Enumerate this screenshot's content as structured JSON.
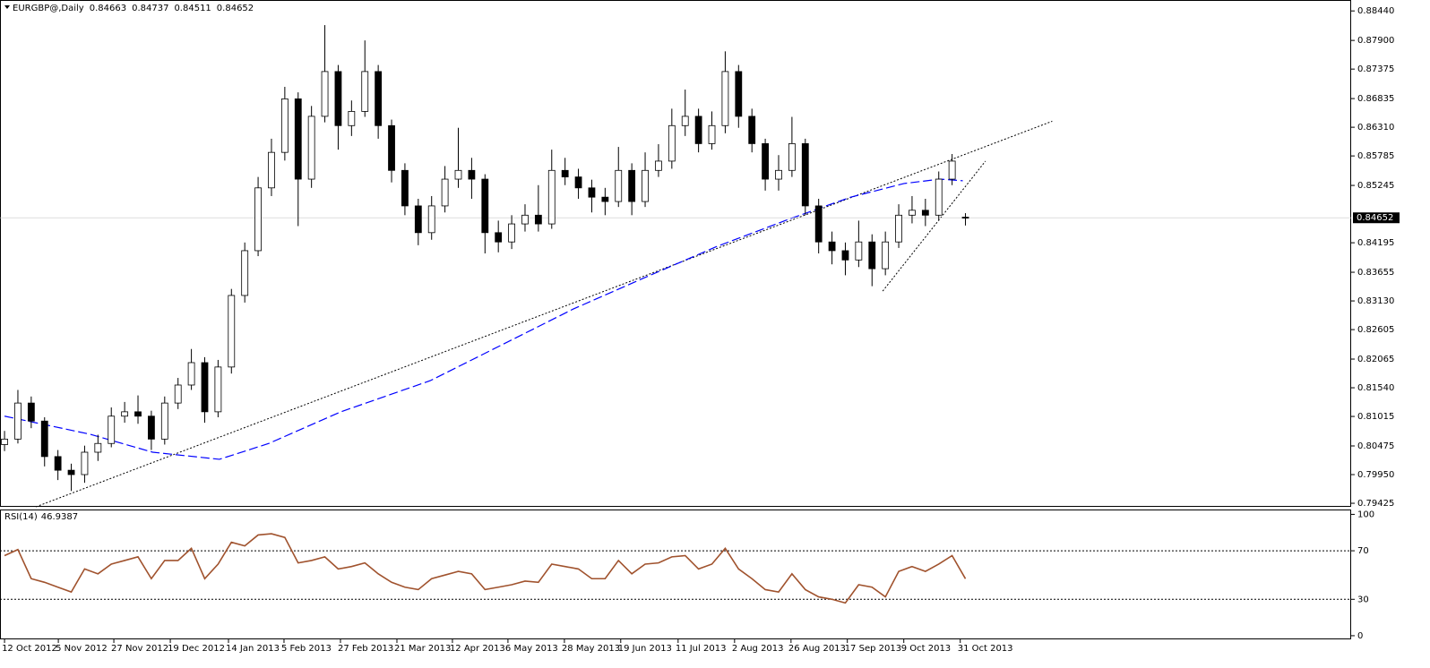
{
  "chart_data": [
    {
      "type": "candlestick",
      "title": "EURGBP@,Daily",
      "xlim": [
        -0.34,
        100.9
      ],
      "ylim": [
        0.7936,
        0.8864
      ],
      "yticks": [
        {
          "value": 0.8844,
          "label": "0.88440"
        },
        {
          "value": 0.879,
          "label": "0.87900"
        },
        0.87375,
        0.86835,
        {
          "value": 0.8631,
          "label": "0.86310"
        },
        0.85785,
        0.85245,
        0.84195,
        0.83655,
        {
          "value": 0.8313,
          "label": "0.83130"
        },
        0.82605,
        0.82065,
        {
          "value": 0.8154,
          "label": "0.81540"
        },
        0.81015,
        0.80475,
        {
          "value": 0.7995,
          "label": "0.79950"
        },
        0.79425
      ],
      "color_up": "#ffffff",
      "color_down": "#000000",
      "open": [
        0.805,
        0.806,
        0.8126,
        0.8093,
        0.8028,
        0.8003,
        0.7995,
        0.8036,
        0.8052,
        0.8102,
        0.811,
        0.8102,
        0.806,
        0.8126,
        0.8159,
        0.82,
        0.811,
        0.8192,
        0.8323,
        0.8405,
        0.852,
        0.8585,
        0.8683,
        0.8536,
        0.8651,
        0.8733,
        0.8634,
        0.866,
        0.8733,
        0.8634,
        0.8552,
        0.8487,
        0.8438,
        0.8487,
        0.8536,
        0.8552,
        0.8536,
        0.8438,
        0.8421,
        0.8454,
        0.847,
        0.8454,
        0.8552,
        0.854,
        0.852,
        0.8503,
        0.8495,
        0.8552,
        0.8495,
        0.8552,
        0.8569,
        0.8634,
        0.8651,
        0.8601,
        0.8634,
        0.8733,
        0.8651,
        0.8601,
        0.8536,
        0.8552,
        0.8601,
        0.8487,
        0.8421,
        0.8405,
        0.8388,
        0.8421,
        0.8372,
        0.8421,
        0.847,
        0.8479,
        0.847,
        0.8536,
        0.84663
      ],
      "high": [
        0.8075,
        0.815,
        0.8138,
        0.81,
        0.804,
        0.8015,
        0.8048,
        0.8068,
        0.8118,
        0.8128,
        0.814,
        0.8112,
        0.8138,
        0.8172,
        0.8225,
        0.821,
        0.8205,
        0.8335,
        0.842,
        0.854,
        0.861,
        0.8705,
        0.8695,
        0.867,
        0.8818,
        0.8745,
        0.868,
        0.879,
        0.8745,
        0.8645,
        0.8565,
        0.85,
        0.8505,
        0.856,
        0.863,
        0.8575,
        0.8545,
        0.846,
        0.847,
        0.849,
        0.8525,
        0.859,
        0.8575,
        0.8555,
        0.8535,
        0.852,
        0.8595,
        0.8565,
        0.8585,
        0.86,
        0.8665,
        0.87,
        0.8665,
        0.866,
        0.877,
        0.8745,
        0.8665,
        0.861,
        0.858,
        0.865,
        0.861,
        0.85,
        0.844,
        0.842,
        0.846,
        0.8435,
        0.844,
        0.849,
        0.8505,
        0.85,
        0.855,
        0.8582,
        0.84737
      ],
      "low": [
        0.8038,
        0.8052,
        0.808,
        0.801,
        0.7985,
        0.7965,
        0.798,
        0.802,
        0.8045,
        0.809,
        0.8088,
        0.804,
        0.805,
        0.8115,
        0.815,
        0.809,
        0.81,
        0.818,
        0.831,
        0.8395,
        0.8505,
        0.857,
        0.845,
        0.852,
        0.864,
        0.859,
        0.8615,
        0.865,
        0.861,
        0.853,
        0.847,
        0.8415,
        0.8425,
        0.8475,
        0.852,
        0.85,
        0.84,
        0.8402,
        0.8408,
        0.844,
        0.844,
        0.8445,
        0.8525,
        0.85,
        0.8475,
        0.847,
        0.8485,
        0.847,
        0.8485,
        0.854,
        0.8555,
        0.8615,
        0.8585,
        0.859,
        0.862,
        0.863,
        0.8585,
        0.8515,
        0.8515,
        0.854,
        0.847,
        0.84,
        0.838,
        0.836,
        0.8375,
        0.834,
        0.836,
        0.841,
        0.8455,
        0.845,
        0.846,
        0.8525,
        0.84511
      ],
      "close": [
        0.806,
        0.8126,
        0.8093,
        0.8028,
        0.8003,
        0.7995,
        0.8036,
        0.8052,
        0.8102,
        0.811,
        0.8102,
        0.806,
        0.8126,
        0.8159,
        0.82,
        0.811,
        0.8192,
        0.8323,
        0.8405,
        0.852,
        0.8585,
        0.8683,
        0.8536,
        0.8651,
        0.8733,
        0.8634,
        0.866,
        0.8733,
        0.8634,
        0.8552,
        0.8487,
        0.8438,
        0.8487,
        0.8536,
        0.8552,
        0.8536,
        0.8438,
        0.8421,
        0.8454,
        0.847,
        0.8454,
        0.8552,
        0.854,
        0.852,
        0.8503,
        0.8495,
        0.8552,
        0.8495,
        0.8552,
        0.8569,
        0.8634,
        0.8651,
        0.8601,
        0.8634,
        0.8733,
        0.8651,
        0.8601,
        0.8536,
        0.8552,
        0.8601,
        0.8487,
        0.8421,
        0.8405,
        0.8388,
        0.8421,
        0.8372,
        0.8421,
        0.847,
        0.8479,
        0.847,
        0.8536,
        0.8569,
        0.84652
      ],
      "moving_average": {
        "color": "#0000ff",
        "x": [
          0,
          6.4,
          11.1,
          16.1,
          19.8,
          25.2,
          31.9,
          37.3,
          42.6,
          48,
          53.4,
          58.7,
          63.4,
          67.4,
          70.1,
          71.8
        ],
        "values": [
          0.8102,
          0.8069,
          0.8036,
          0.8023,
          0.8052,
          0.811,
          0.8167,
          0.8233,
          0.8298,
          0.8356,
          0.8413,
          0.8462,
          0.8503,
          0.8528,
          0.8536,
          0.8533
        ]
      },
      "trendlines": [
        {
          "x": [
            2.35,
            78.5
          ],
          "values": [
            0.7936,
            0.8642
          ]
        },
        {
          "x": [
            65.8,
            73.5
          ],
          "values": [
            0.8331,
            0.8569
          ]
        }
      ]
    },
    {
      "type": "line",
      "title": "RSI(14)",
      "color": "#a0522d",
      "xlim": [
        -0.34,
        100.9
      ],
      "ylim": [
        -3,
        104
      ],
      "yticks": [
        0,
        30,
        70,
        100
      ],
      "levels": [
        30,
        70
      ],
      "values": [
        66,
        71,
        47,
        44,
        40,
        36,
        55,
        51,
        59,
        62,
        65,
        47,
        62,
        62,
        72,
        47,
        59,
        77,
        74,
        83,
        84,
        81,
        60,
        62,
        65,
        55,
        57,
        60,
        51,
        44,
        40,
        38,
        47,
        50,
        53,
        51,
        38,
        40,
        42,
        45,
        44,
        59,
        57,
        55,
        47,
        47,
        62,
        51,
        59,
        60,
        65,
        66,
        55,
        59,
        72,
        55,
        47,
        38,
        36,
        51,
        38,
        32,
        30,
        27,
        42,
        40,
        32,
        53,
        57,
        53,
        59,
        66,
        46.9387
      ],
      "xticks": [
        {
          "value": 0,
          "label": "12 Oct 2012"
        },
        {
          "value": 4.03,
          "label": "5 Nov 2012"
        },
        {
          "value": 8.19,
          "label": "27 Nov 2012"
        },
        {
          "value": 12.42,
          "label": "19 Dec 2012"
        },
        {
          "value": 16.78,
          "label": "14 Jan 2013"
        },
        {
          "value": 20.94,
          "label": "5 Feb 2013"
        },
        {
          "value": 25.17,
          "label": "27 Feb 2013"
        },
        {
          "value": 29.4,
          "label": "21 Mar 2013"
        },
        {
          "value": 33.56,
          "label": "12 Apr 2013"
        },
        {
          "value": 37.72,
          "label": "6 May 2013"
        },
        {
          "value": 41.95,
          "label": "28 May 2013"
        },
        {
          "value": 46.17,
          "label": "19 Jun 2013"
        },
        {
          "value": 50.47,
          "label": "11 Jul 2013"
        },
        {
          "value": 54.7,
          "label": "2 Aug 2013"
        },
        {
          "value": 58.93,
          "label": "26 Aug 2013"
        },
        {
          "value": 63.15,
          "label": "17 Sep 2013"
        },
        {
          "value": 67.38,
          "label": "9 Oct 2013"
        },
        {
          "value": 71.61,
          "label": "31 Oct 2013"
        }
      ]
    }
  ]
}
